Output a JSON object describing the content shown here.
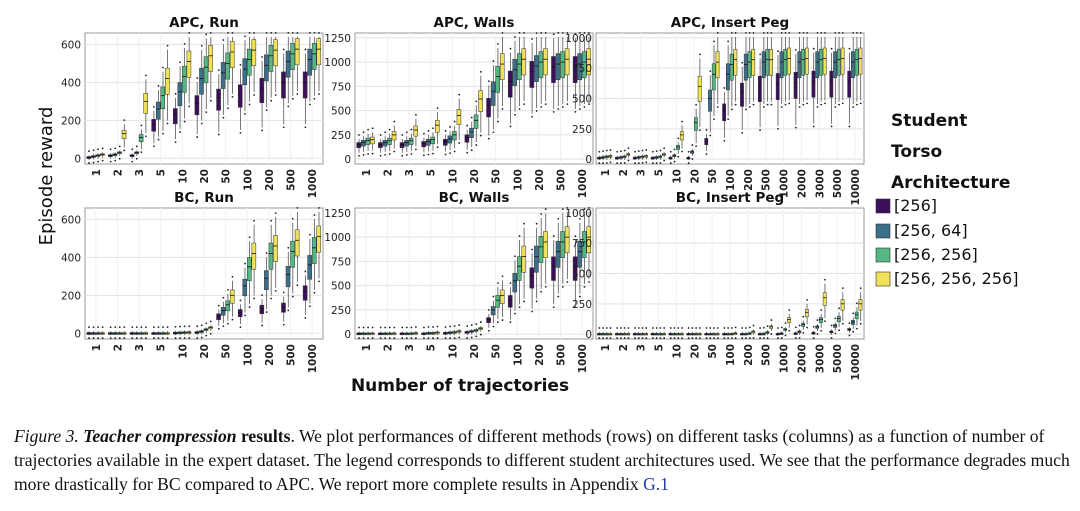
{
  "figure": {
    "ylabel": "Episode reward",
    "xlabel": "Number of trajectories",
    "legend": {
      "title_lines": [
        "Student",
        "Torso",
        "Architecture"
      ],
      "items": [
        {
          "label": "[256]",
          "color": "#3b0f5a"
        },
        {
          "label": "[256, 64]",
          "color": "#3d6f8a"
        },
        {
          "label": "[256, 256]",
          "color": "#55b884"
        },
        {
          "label": "[256, 256, 256]",
          "color": "#f0e158"
        }
      ]
    }
  },
  "chart_data": [
    {
      "type": "box",
      "title": "APC, Run",
      "categories": [
        "1",
        "2",
        "3",
        "5",
        "10",
        "20",
        "50",
        "100",
        "200",
        "500",
        "1000"
      ],
      "yticks": [
        0,
        200,
        400,
        600
      ],
      "ylim": [
        -30,
        660
      ],
      "series": [
        {
          "values": [
            5,
            15,
            15,
            180,
            230,
            290,
            320,
            340,
            370,
            400,
            400
          ]
        },
        {
          "values": [
            10,
            20,
            30,
            260,
            350,
            420,
            450,
            470,
            490,
            510,
            520
          ]
        },
        {
          "values": [
            15,
            30,
            110,
            330,
            430,
            480,
            500,
            520,
            540,
            550,
            550
          ]
        },
        {
          "values": [
            20,
            130,
            300,
            420,
            510,
            540,
            560,
            570,
            570,
            575,
            575
          ]
        }
      ]
    },
    {
      "type": "box",
      "title": "APC, Walls",
      "categories": [
        "1",
        "2",
        "3",
        "5",
        "10",
        "20",
        "50",
        "100",
        "200",
        "500",
        "1000"
      ],
      "yticks": [
        0,
        250,
        500,
        750,
        1000,
        1250
      ],
      "ylim": [
        -50,
        1300
      ],
      "series": [
        {
          "values": [
            150,
            150,
            150,
            160,
            180,
            220,
            550,
            800,
            900,
            950,
            950
          ]
        },
        {
          "values": [
            170,
            170,
            170,
            180,
            210,
            280,
            700,
            920,
            960,
            980,
            980
          ]
        },
        {
          "values": [
            190,
            190,
            190,
            200,
            250,
            400,
            850,
            980,
            1000,
            1000,
            1000
          ]
        },
        {
          "values": [
            200,
            250,
            300,
            350,
            450,
            620,
            980,
            1030,
            1030,
            1030,
            1030
          ]
        }
      ]
    },
    {
      "type": "box",
      "title": "APC, Insert Peg",
      "categories": [
        "1",
        "2",
        "3",
        "5",
        "10",
        "20",
        "50",
        "100",
        "200",
        "500",
        "1000",
        "2000",
        "3000",
        "5000",
        "10000"
      ],
      "yticks": [
        0,
        250,
        500,
        750,
        1000
      ],
      "ylim": [
        -40,
        1040
      ],
      "series": [
        {
          "values": [
            10,
            10,
            10,
            10,
            10,
            10,
            150,
            400,
            550,
            600,
            620,
            630,
            640,
            640,
            640
          ]
        },
        {
          "values": [
            15,
            15,
            15,
            15,
            30,
            60,
            500,
            700,
            780,
            800,
            800,
            800,
            800,
            800,
            800
          ]
        },
        {
          "values": [
            20,
            20,
            20,
            20,
            100,
            300,
            700,
            780,
            800,
            820,
            820,
            820,
            820,
            820,
            820
          ]
        },
        {
          "values": [
            25,
            40,
            25,
            40,
            200,
            600,
            800,
            820,
            820,
            820,
            830,
            830,
            830,
            830,
            830
          ]
        }
      ]
    },
    {
      "type": "box",
      "title": "BC, Run",
      "categories": [
        "1",
        "2",
        "3",
        "5",
        "10",
        "20",
        "50",
        "100",
        "200",
        "500",
        "1000"
      ],
      "yticks": [
        0,
        200,
        400,
        600
      ],
      "ylim": [
        -30,
        660
      ],
      "series": [
        {
          "values": [
            0,
            0,
            0,
            0,
            2,
            5,
            90,
            110,
            130,
            140,
            220
          ]
        },
        {
          "values": [
            0,
            0,
            0,
            0,
            3,
            10,
            120,
            250,
            290,
            310,
            360
          ]
        },
        {
          "values": [
            0,
            0,
            0,
            0,
            4,
            20,
            150,
            350,
            420,
            430,
            450
          ]
        },
        {
          "values": [
            0,
            0,
            0,
            0,
            5,
            30,
            200,
            420,
            460,
            490,
            510
          ]
        }
      ]
    },
    {
      "type": "box",
      "title": "BC, Walls",
      "categories": [
        "1",
        "2",
        "3",
        "5",
        "10",
        "20",
        "50",
        "100",
        "200",
        "500",
        "1000"
      ],
      "yticks": [
        0,
        250,
        500,
        750,
        1000,
        1250
      ],
      "ylim": [
        -50,
        1300
      ],
      "series": [
        {
          "values": [
            5,
            5,
            5,
            5,
            10,
            20,
            150,
            350,
            600,
            700,
            700
          ]
        },
        {
          "values": [
            5,
            5,
            5,
            10,
            15,
            30,
            250,
            550,
            800,
            850,
            850
          ]
        },
        {
          "values": [
            5,
            5,
            5,
            10,
            20,
            40,
            350,
            700,
            900,
            950,
            950
          ]
        },
        {
          "values": [
            5,
            5,
            10,
            15,
            30,
            60,
            400,
            800,
            950,
            1000,
            1000
          ]
        }
      ]
    },
    {
      "type": "box",
      "title": "BC, Insert Peg",
      "categories": [
        "1",
        "2",
        "3",
        "5",
        "10",
        "20",
        "50",
        "100",
        "200",
        "500",
        "1000",
        "2000",
        "3000",
        "5000",
        "10000"
      ],
      "yticks": [
        0,
        250,
        500,
        750,
        1000
      ],
      "ylim": [
        -40,
        1040
      ],
      "series": [
        {
          "values": [
            0,
            0,
            0,
            0,
            0,
            0,
            0,
            0,
            0,
            0,
            0,
            5,
            10,
            20,
            40
          ]
        },
        {
          "values": [
            0,
            0,
            0,
            0,
            0,
            0,
            0,
            0,
            0,
            2,
            5,
            20,
            60,
            70,
            100
          ]
        },
        {
          "values": [
            0,
            0,
            0,
            0,
            0,
            0,
            0,
            0,
            5,
            15,
            40,
            80,
            120,
            130,
            160
          ]
        },
        {
          "values": [
            0,
            0,
            0,
            0,
            0,
            0,
            0,
            5,
            20,
            60,
            120,
            180,
            300,
            250,
            250
          ]
        }
      ]
    }
  ],
  "caption": {
    "label": "Figure 3.",
    "emph": "Teacher compression",
    "bold": "results",
    "text": ". We plot performances of different methods (rows) on different tasks (columns) as a function of number of trajectories available in the expert dataset. The legend corresponds to different student architectures used. We see that the performance degrades much more drastically for BC compared to APC. We report more complete results in Appendix",
    "link": "G.1"
  }
}
